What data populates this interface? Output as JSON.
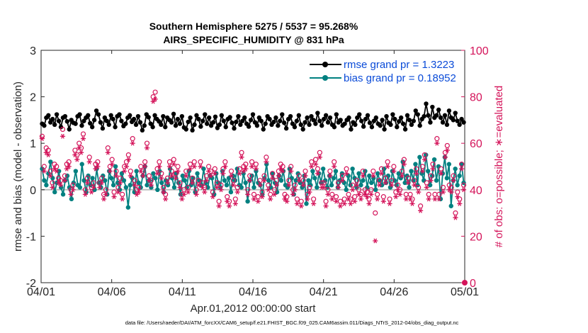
{
  "chart_data": {
    "type": "line",
    "title": "Southern Hemisphere 5275 / 5537 = 95.268%",
    "subtitle": "AIRS_SPECIFIC_HUMIDITY @ 831 hPa",
    "xlabel": "Apr.01,2012 00:00:00 start",
    "ylabel": "rmse and bias (model - observation)",
    "ylabel_right": "# of obs: o=possible; ∗=evaluated",
    "xlim": [
      0,
      30
    ],
    "ylim": [
      -2,
      3
    ],
    "ylim_right": [
      0,
      100
    ],
    "x_ticks": [
      0,
      5,
      10,
      15,
      20,
      25,
      30
    ],
    "x_tick_labels": [
      "04/01",
      "04/06",
      "04/11",
      "04/16",
      "04/21",
      "04/26",
      "05/01"
    ],
    "y_ticks": [
      "-2",
      "-1",
      "0",
      "1",
      "2",
      "3"
    ],
    "y_ticks_right": [
      "0",
      "20",
      "40",
      "60",
      "80",
      "100"
    ],
    "footer": "data file: /Users/raeder/DAI/ATM_forcXX/CAM6_setup/f.e21.FHIST_BGC.f09_025.CAM6assim.011/Diags_NTrS_2012-04/obs_diag_output.nc",
    "series": [
      {
        "name": "rmse grand pr = 1.3223",
        "color": "#000000",
        "axis": "left",
        "values": [
          1.42,
          1.38,
          1.55,
          1.6,
          1.45,
          1.52,
          1.4,
          1.62,
          1.48,
          1.35,
          1.55,
          1.58,
          1.47,
          1.3,
          1.5,
          1.44,
          1.42,
          1.58,
          1.62,
          1.38,
          1.48,
          1.55,
          1.6,
          1.43,
          1.35,
          1.5,
          1.7,
          1.62,
          1.45,
          1.32,
          1.55,
          1.48,
          1.4,
          1.6,
          1.52,
          1.35,
          1.58,
          1.62,
          1.48,
          1.37,
          1.42,
          1.55,
          1.6,
          1.46,
          1.52,
          1.4,
          1.58,
          1.45,
          1.28,
          1.38,
          1.62,
          1.56,
          1.42,
          1.35,
          1.6,
          1.52,
          1.47,
          1.4,
          1.58,
          1.35,
          1.55,
          1.5,
          1.45,
          1.63,
          1.38,
          1.52,
          1.42,
          1.58,
          1.34,
          1.3,
          1.46,
          1.55,
          1.28,
          1.4,
          1.6,
          1.52,
          1.36,
          1.48,
          1.62,
          1.42,
          1.55,
          1.38,
          1.45,
          1.57,
          1.33,
          1.4,
          1.6,
          1.48,
          1.35,
          1.52,
          1.56,
          1.44,
          1.32,
          1.46,
          1.58,
          1.4,
          1.48,
          1.55,
          1.42,
          1.36,
          1.5,
          1.62,
          1.45,
          1.38,
          1.55,
          1.48,
          1.3,
          1.42,
          1.58,
          1.52,
          1.4,
          1.46,
          1.55,
          1.38,
          1.48,
          1.62,
          1.44,
          1.32,
          1.52,
          1.58,
          1.42,
          1.35,
          1.48,
          1.6,
          1.4,
          1.3,
          1.45,
          1.55,
          1.4,
          1.58,
          1.5,
          1.42,
          1.65,
          1.48,
          1.38,
          1.52,
          1.6,
          1.45,
          1.55,
          1.4,
          1.35,
          1.62,
          1.45,
          1.5,
          1.38,
          1.42,
          1.5,
          1.55,
          1.3,
          1.45,
          1.4,
          1.55,
          1.62,
          1.48,
          1.36,
          1.52,
          1.6,
          1.44,
          1.35,
          1.48,
          1.55,
          1.42,
          1.38,
          1.5,
          1.3,
          1.58,
          1.44,
          1.4,
          1.62,
          1.52,
          1.35,
          1.47,
          1.55,
          1.42,
          1.3,
          1.6,
          1.5,
          1.4,
          1.48,
          1.7,
          1.62,
          1.38,
          1.52,
          1.58,
          1.85,
          1.6,
          1.45,
          1.78,
          1.55,
          1.6,
          1.72,
          1.55,
          1.45,
          1.6,
          1.4,
          1.7,
          1.55,
          1.5,
          1.65,
          1.48,
          1.4,
          1.52,
          1.45
        ]
      },
      {
        "name": "bias grand pr = 0.18952",
        "color": "#008080",
        "axis": "left",
        "values": [
          0.45,
          0.2,
          0.1,
          0.35,
          0.6,
          0.25,
          -0.05,
          0.15,
          0.4,
          0.05,
          -0.1,
          0.2,
          0.3,
          0.05,
          -0.2,
          0.15,
          0.4,
          0.1,
          0.05,
          0.55,
          0.2,
          -0.05,
          0.3,
          0.1,
          0.25,
          0.0,
          0.45,
          0.15,
          0.05,
          0.3,
          0.2,
          -0.1,
          0.4,
          0.25,
          0.1,
          0.5,
          0.15,
          0.0,
          0.35,
          0.2,
          0.05,
          -0.38,
          0.1,
          0.25,
          -0.05,
          0.4,
          0.15,
          0.05,
          0.3,
          0.5,
          0.1,
          0.2,
          0.05,
          0.35,
          0.25,
          0.0,
          0.4,
          0.15,
          -0.05,
          0.2,
          0.1,
          0.45,
          0.25,
          0.05,
          0.35,
          0.15,
          -0.1,
          0.3,
          0.2,
          0.05,
          0.4,
          0.1,
          0.25,
          -0.05,
          0.35,
          0.2,
          0.1,
          0.45,
          0.15,
          0.05,
          0.3,
          0.25,
          -0.1,
          0.35,
          0.15,
          0.05,
          0.4,
          0.2,
          0.1,
          0.25,
          -0.05,
          0.3,
          0.2,
          0.45,
          0.1,
          0.05,
          0.35,
          0.15,
          -0.25,
          0.2,
          0.3,
          0.05,
          0.4,
          0.15,
          0.1,
          -0.1,
          0.25,
          0.55,
          0.2,
          0.05,
          0.35,
          0.15,
          -0.05,
          0.3,
          0.2,
          0.4,
          0.1,
          0.05,
          0.45,
          0.25,
          -0.1,
          0.2,
          0.35,
          0.15,
          0.05,
          0.3,
          -0.3,
          0.2,
          0.1,
          0.4,
          0.25,
          0.05,
          0.35,
          0.15,
          0.45,
          0.2,
          0.05,
          0.3,
          0.1,
          0.25,
          0.4,
          0.05,
          0.2,
          0.35,
          0.15,
          0.0,
          0.3,
          0.1,
          0.45,
          0.25,
          0.05,
          0.35,
          0.1,
          0.2,
          0.4,
          0.05,
          0.3,
          0.15,
          0.25,
          0.0,
          0.35,
          0.2,
          0.1,
          0.45,
          0.15,
          0.3,
          0.05,
          0.4,
          0.2,
          0.1,
          0.35,
          0.25,
          0.6,
          0.15,
          0.3,
          0.05,
          0.4,
          0.2,
          0.55,
          0.1,
          0.7,
          0.35,
          0.2,
          0.75,
          0.4,
          0.1,
          0.3,
          0.65,
          0.2,
          0.5,
          -0.2,
          0.35,
          0.7,
          0.25,
          0.55,
          -0.35,
          0.2,
          0.45,
          0.1,
          0.3,
          0.55,
          0.15
        ]
      },
      {
        "name": "possible",
        "color": "#d4145a",
        "axis": "right",
        "marker": "o",
        "values": [
          63,
          50,
          58,
          57,
          48,
          43,
          51,
          50,
          45,
          44,
          66,
          46,
          51,
          52,
          40,
          42,
          57,
          55,
          60,
          58,
          64,
          40,
          45,
          54,
          41,
          43,
          51,
          52,
          43,
          45,
          38,
          40,
          58,
          50,
          53,
          39,
          48,
          41,
          45,
          38,
          50,
          52,
          55,
          48,
          62,
          44,
          40,
          41,
          50,
          48,
          52,
          60,
          46,
          44,
          80,
          82,
          49,
          52,
          47,
          41,
          38,
          45,
          52,
          48,
          53,
          47,
          50,
          43,
          38,
          40,
          48,
          41,
          51,
          45,
          52,
          40,
          44,
          52,
          43,
          41,
          46,
          50,
          48,
          39,
          49,
          43,
          35,
          42,
          49,
          52,
          37,
          35,
          48,
          44,
          36,
          41,
          49,
          56,
          50,
          51,
          40,
          46,
          52,
          38,
          51,
          37,
          44,
          39,
          46,
          54,
          42,
          38,
          47,
          40,
          44,
          48,
          51,
          50,
          38,
          37,
          44,
          50,
          40,
          42,
          36,
          46,
          35,
          44,
          48,
          38,
          41,
          52,
          36,
          53,
          49,
          56,
          43,
          43,
          35,
          40,
          48,
          38,
          52,
          37,
          43,
          35,
          46,
          36,
          49,
          38,
          36,
          42,
          37,
          44,
          40,
          38,
          48,
          40,
          39,
          36,
          40,
          48,
          30,
          38,
          44,
          49,
          37,
          45,
          52,
          36,
          44,
          50,
          39,
          42,
          40,
          48,
          53,
          38,
          45,
          38,
          36,
          44,
          49,
          41,
          33,
          50,
          55,
          43,
          38,
          46,
          51,
          38,
          62,
          38,
          49,
          41,
          56,
          59,
          42,
          41,
          46,
          30,
          39,
          36,
          51,
          42
        ]
      },
      {
        "name": "evaluated",
        "color": "#d4145a",
        "axis": "right",
        "marker": "*",
        "values": [
          62,
          48,
          56,
          55,
          46,
          41,
          49,
          48,
          43,
          42,
          63,
          44,
          49,
          50,
          38,
          40,
          55,
          53,
          58,
          56,
          62,
          38,
          43,
          52,
          39,
          41,
          49,
          50,
          41,
          43,
          36,
          38,
          56,
          48,
          51,
          37,
          46,
          39,
          43,
          36,
          48,
          50,
          53,
          46,
          60,
          42,
          38,
          39,
          48,
          46,
          50,
          58,
          44,
          42,
          78,
          79,
          47,
          50,
          45,
          39,
          36,
          43,
          50,
          46,
          51,
          45,
          48,
          41,
          36,
          38,
          46,
          39,
          49,
          43,
          50,
          38,
          42,
          50,
          41,
          39,
          44,
          48,
          46,
          37,
          47,
          41,
          33,
          40,
          47,
          50,
          35,
          33,
          46,
          42,
          34,
          39,
          47,
          54,
          48,
          49,
          38,
          44,
          50,
          36,
          49,
          35,
          42,
          37,
          44,
          52,
          40,
          36,
          45,
          38,
          42,
          46,
          49,
          48,
          36,
          35,
          42,
          48,
          38,
          40,
          34,
          44,
          33,
          42,
          46,
          36,
          39,
          50,
          34,
          51,
          47,
          54,
          41,
          41,
          33,
          38,
          46,
          36,
          50,
          35,
          41,
          33,
          44,
          34,
          47,
          36,
          34,
          40,
          35,
          42,
          38,
          36,
          46,
          38,
          37,
          34,
          38,
          46,
          18,
          36,
          42,
          47,
          35,
          43,
          50,
          34,
          42,
          48,
          37,
          40,
          38,
          46,
          51,
          36,
          43,
          36,
          34,
          42,
          47,
          39,
          31,
          48,
          53,
          41,
          36,
          44,
          49,
          36,
          60,
          36,
          47,
          39,
          54,
          57,
          40,
          39,
          44,
          28,
          37,
          34,
          49,
          40
        ]
      }
    ]
  }
}
